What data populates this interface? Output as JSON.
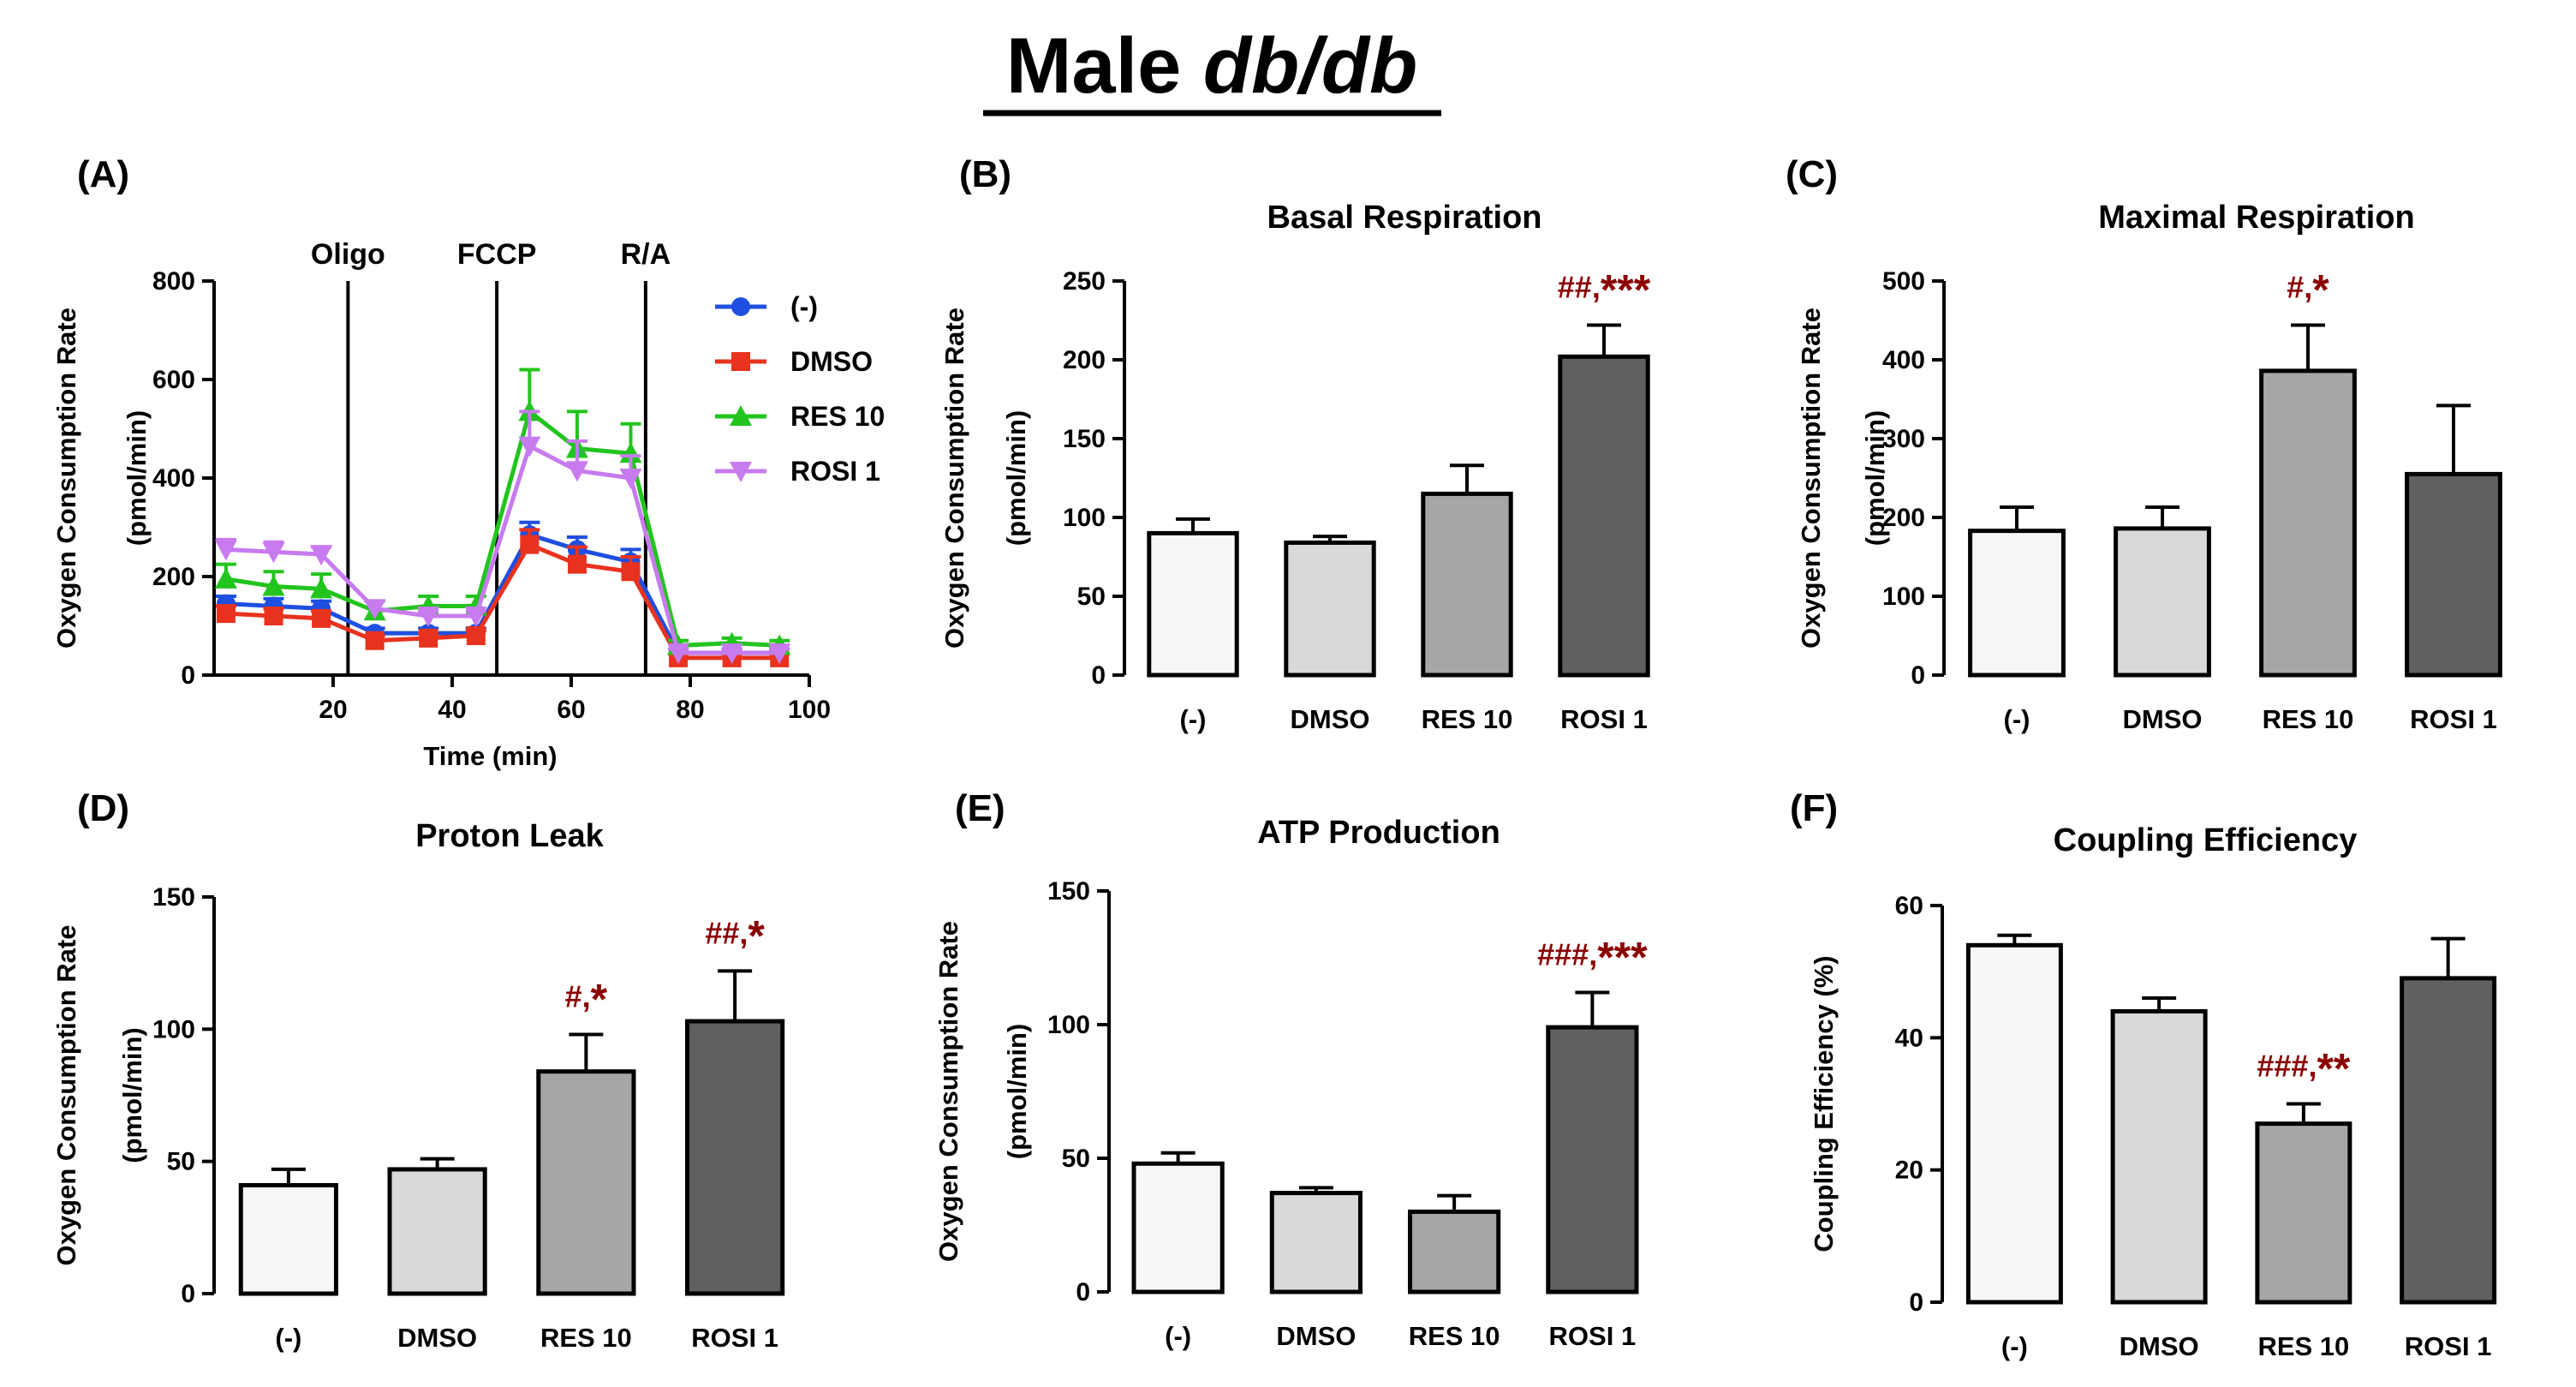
{
  "figure": {
    "title_prefix": "Male ",
    "title_italic": "db/db"
  },
  "chart_data": [
    {
      "label": "(A)",
      "type": "line",
      "title": "",
      "xlabel": "Time (min)",
      "ylabel": [
        "Oxygen Consumption Rate",
        "(pmol/min)"
      ],
      "xlim": [
        0,
        100
      ],
      "ylim": [
        0,
        800
      ],
      "xticks": [
        20,
        40,
        60,
        80,
        100
      ],
      "yticks": [
        0,
        200,
        400,
        600,
        800
      ],
      "x": [
        2,
        10,
        18,
        27,
        36,
        44,
        53,
        61,
        70,
        78,
        87,
        95
      ],
      "injections": [
        {
          "label": "Oligo",
          "x": 22.5
        },
        {
          "label": "FCCP",
          "x": 47.5
        },
        {
          "label": "R/A",
          "x": 72.5
        }
      ],
      "series": [
        {
          "name": "(-)",
          "color": "#1f4fe0",
          "marker": "circle",
          "values": [
            145,
            140,
            135,
            85,
            85,
            85,
            285,
            255,
            230,
            45,
            45,
            45
          ],
          "errors": [
            15,
            15,
            15,
            10,
            10,
            10,
            25,
            25,
            25,
            8,
            8,
            8
          ]
        },
        {
          "name": "DMSO",
          "color": "#e8321e",
          "marker": "square",
          "values": [
            125,
            120,
            115,
            70,
            75,
            80,
            265,
            225,
            210,
            35,
            35,
            35
          ],
          "errors": [
            15,
            15,
            15,
            10,
            10,
            10,
            30,
            35,
            30,
            8,
            8,
            8
          ]
        },
        {
          "name": "RES 10",
          "color": "#22c41e",
          "marker": "triangle-up",
          "values": [
            195,
            180,
            175,
            130,
            140,
            140,
            535,
            460,
            450,
            60,
            65,
            60
          ],
          "errors": [
            30,
            30,
            30,
            20,
            20,
            20,
            85,
            75,
            60,
            10,
            10,
            10
          ]
        },
        {
          "name": "ROSI 1",
          "color": "#c77bee",
          "marker": "triangle-down",
          "values": [
            255,
            250,
            245,
            135,
            120,
            120,
            465,
            415,
            400,
            45,
            45,
            45
          ],
          "errors": [
            20,
            20,
            15,
            15,
            10,
            10,
            70,
            60,
            45,
            8,
            8,
            8
          ]
        }
      ]
    },
    {
      "label": "(B)",
      "type": "bar",
      "title": "Basal Respiration",
      "ylabel": [
        "Oxygen Consumption Rate",
        "(pmol/min)"
      ],
      "ylim": [
        0,
        250
      ],
      "yticks": [
        0,
        50,
        100,
        150,
        200,
        250
      ],
      "categories": [
        "(-)",
        "DMSO",
        "RES 10",
        "ROSI 1"
      ],
      "values": [
        90,
        84,
        115,
        202
      ],
      "errors": [
        9,
        4,
        18,
        20
      ],
      "colors": [
        "#f7f7f7",
        "#d9d9d9",
        "#a6a6a6",
        "#606060"
      ],
      "annotations": [
        {
          "index": 3,
          "hash": "##,",
          "stars": "***"
        }
      ]
    },
    {
      "label": "(C)",
      "type": "bar",
      "title": "Maximal Respiration",
      "ylabel": [
        "Oxygen Consumption Rate",
        "(pmol/min)"
      ],
      "ylim": [
        0,
        500
      ],
      "yticks": [
        0,
        100,
        200,
        300,
        400,
        500
      ],
      "categories": [
        "(-)",
        "DMSO",
        "RES 10",
        "ROSI 1"
      ],
      "values": [
        183,
        186,
        386,
        255
      ],
      "errors": [
        30,
        27,
        58,
        87
      ],
      "colors": [
        "#f7f7f7",
        "#d9d9d9",
        "#a6a6a6",
        "#606060"
      ],
      "annotations": [
        {
          "index": 2,
          "hash": "#,",
          "stars": "*"
        }
      ]
    },
    {
      "label": "(D)",
      "type": "bar",
      "title": "Proton Leak",
      "ylabel": [
        "Oxygen Consumption Rate",
        "(pmol/min)"
      ],
      "ylim": [
        0,
        150
      ],
      "yticks": [
        0,
        50,
        100,
        150
      ],
      "categories": [
        "(-)",
        "DMSO",
        "RES 10",
        "ROSI 1"
      ],
      "values": [
        41,
        47,
        84,
        103
      ],
      "errors": [
        6,
        4,
        14,
        19
      ],
      "colors": [
        "#f7f7f7",
        "#d9d9d9",
        "#a6a6a6",
        "#606060"
      ],
      "annotations": [
        {
          "index": 2,
          "hash": "#,",
          "stars": "*"
        },
        {
          "index": 3,
          "hash": "##,",
          "stars": "*"
        }
      ]
    },
    {
      "label": "(E)",
      "type": "bar",
      "title": "ATP Production",
      "ylabel": [
        "Oxygen Consumption Rate",
        "(pmol/min)"
      ],
      "ylim": [
        0,
        150
      ],
      "yticks": [
        0,
        50,
        100,
        150
      ],
      "categories": [
        "(-)",
        "DMSO",
        "RES 10",
        "ROSI 1"
      ],
      "values": [
        48,
        37,
        30,
        99
      ],
      "errors": [
        4,
        2,
        6,
        13
      ],
      "colors": [
        "#f7f7f7",
        "#d9d9d9",
        "#a6a6a6",
        "#606060"
      ],
      "annotations": [
        {
          "index": 3,
          "hash": "###,",
          "stars": "***"
        }
      ]
    },
    {
      "label": "(F)",
      "type": "bar",
      "title": "Coupling Efficiency",
      "ylabel": [
        "Coupling Efficiency (%)"
      ],
      "ylim": [
        0,
        60
      ],
      "yticks": [
        0,
        20,
        40,
        60
      ],
      "categories": [
        "(-)",
        "DMSO",
        "RES 10",
        "ROSI 1"
      ],
      "values": [
        54,
        44,
        27,
        49
      ],
      "errors": [
        1.5,
        2,
        3,
        6
      ],
      "colors": [
        "#f7f7f7",
        "#d9d9d9",
        "#a6a6a6",
        "#606060"
      ],
      "annotations": [
        {
          "index": 2,
          "hash": "###,",
          "stars": "**"
        }
      ]
    }
  ]
}
